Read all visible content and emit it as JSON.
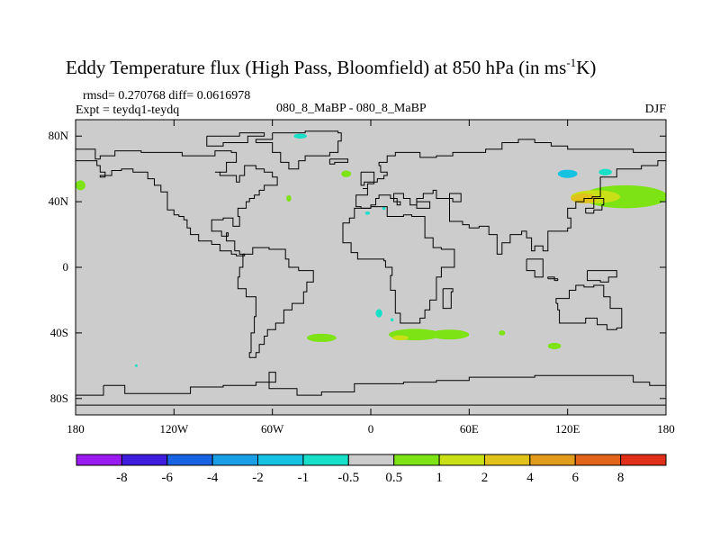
{
  "chart_data": {
    "type": "heatmap",
    "title": "Eddy Temperature flux (High Pass, Bloomfield) at 850 hPa (in ms",
    "title_sup": "-1",
    "title_tail": "K)",
    "stats": "rmsd= 0.270768 diff= 0.0616978",
    "experiment": "Expt = teydq1-teydq",
    "center_label": "080_8_MaBP - 080_8_MaBP",
    "season": "DJF",
    "x_range": [
      -180,
      180
    ],
    "y_range": [
      -90,
      90
    ],
    "x_ticks": [
      {
        "value": -180,
        "label": "180"
      },
      {
        "value": -120,
        "label": "120W"
      },
      {
        "value": -60,
        "label": "60W"
      },
      {
        "value": 0,
        "label": "0"
      },
      {
        "value": 60,
        "label": "60E"
      },
      {
        "value": 120,
        "label": "120E"
      },
      {
        "value": 180,
        "label": "180"
      }
    ],
    "y_ticks": [
      {
        "value": 80,
        "label": "80N"
      },
      {
        "value": 40,
        "label": "40N"
      },
      {
        "value": 0,
        "label": "0"
      },
      {
        "value": -40,
        "label": "40S"
      },
      {
        "value": -80,
        "label": "80S"
      }
    ],
    "colorbar": {
      "colors": [
        "#9a1cf0",
        "#3d1ddb",
        "#1863e3",
        "#1a9ee6",
        "#16c2e2",
        "#18dfc7",
        "#cccccc",
        "#7de314",
        "#c9e016",
        "#e0c21a",
        "#e09c1a",
        "#e0641a",
        "#e0301a"
      ],
      "labels": [
        "-8",
        "-6",
        "-4",
        "-2",
        "-1",
        "-0.5",
        "0.5",
        "1",
        "2",
        "4",
        "6",
        "8"
      ]
    },
    "background_color": "#cccccc",
    "coastline_color": "#000000",
    "anomalies": [
      {
        "lon": 155,
        "lat": 43,
        "rx": 26,
        "ry": 7,
        "color": "#7de314"
      },
      {
        "lon": 137,
        "lat": 43,
        "rx": 15,
        "ry": 4,
        "color": "#c9e016"
      },
      {
        "lon": 130,
        "lat": 42,
        "rx": 8,
        "ry": 3,
        "color": "#e0c21a"
      },
      {
        "lon": 120,
        "lat": 57,
        "rx": 6,
        "ry": 2.5,
        "color": "#16c2e2"
      },
      {
        "lon": 143,
        "lat": 58,
        "rx": 4,
        "ry": 2,
        "color": "#18dfc7"
      },
      {
        "lon": -177,
        "lat": 50,
        "rx": 3,
        "ry": 3,
        "color": "#7de314"
      },
      {
        "lon": -43,
        "lat": 80,
        "rx": 4,
        "ry": 1.5,
        "color": "#18dfc7"
      },
      {
        "lon": -15,
        "lat": 57,
        "rx": 3,
        "ry": 2,
        "color": "#7de314"
      },
      {
        "lon": -50,
        "lat": 42,
        "rx": 1.5,
        "ry": 2,
        "color": "#7de314"
      },
      {
        "lon": -2,
        "lat": 33,
        "rx": 1.5,
        "ry": 1,
        "color": "#18dfc7"
      },
      {
        "lon": 8,
        "lat": 36,
        "rx": 1,
        "ry": 1,
        "color": "#18dfc7"
      },
      {
        "lon": 5,
        "lat": -28,
        "rx": 2,
        "ry": 2.5,
        "color": "#18dfc7"
      },
      {
        "lon": 27,
        "lat": -41,
        "rx": 16,
        "ry": 3.5,
        "color": "#7de314"
      },
      {
        "lon": 48,
        "lat": -41,
        "rx": 12,
        "ry": 3,
        "color": "#7de314"
      },
      {
        "lon": 18,
        "lat": -43,
        "rx": 5,
        "ry": 1.5,
        "color": "#c9e016"
      },
      {
        "lon": -30,
        "lat": -43,
        "rx": 9,
        "ry": 2.5,
        "color": "#7de314"
      },
      {
        "lon": 112,
        "lat": -48,
        "rx": 4,
        "ry": 2,
        "color": "#7de314"
      },
      {
        "lon": 80,
        "lat": -40,
        "rx": 2,
        "ry": 1.5,
        "color": "#7de314"
      },
      {
        "lon": 13,
        "lat": -32,
        "rx": 1,
        "ry": 1,
        "color": "#18dfc7"
      },
      {
        "lon": -143,
        "lat": -60,
        "rx": 0.8,
        "ry": 0.8,
        "color": "#18dfc7"
      }
    ],
    "coastlines": [
      [
        [
          -180,
          72
        ],
        [
          -170,
          72
        ],
        [
          -168,
          66
        ],
        [
          -165,
          68
        ],
        [
          -156,
          71
        ],
        [
          -140,
          70
        ],
        [
          -128,
          70
        ],
        [
          -115,
          68
        ],
        [
          -100,
          68
        ],
        [
          -95,
          71
        ],
        [
          -85,
          70
        ],
        [
          -82,
          64
        ],
        [
          -88,
          58
        ],
        [
          -95,
          58
        ],
        [
          -92,
          56
        ],
        [
          -82,
          52
        ],
        [
          -80,
          56
        ],
        [
          -77,
          62
        ],
        [
          -70,
          60
        ],
        [
          -65,
          58
        ],
        [
          -60,
          55
        ],
        [
          -57,
          50
        ],
        [
          -65,
          47
        ],
        [
          -68,
          44
        ],
        [
          -71,
          42
        ],
        [
          -74,
          40
        ],
        [
          -76,
          36
        ],
        [
          -81,
          31
        ],
        [
          -80,
          25
        ],
        [
          -84,
          30
        ],
        [
          -90,
          29
        ],
        [
          -97,
          27
        ],
        [
          -97,
          22
        ],
        [
          -91,
          19
        ],
        [
          -87,
          21
        ],
        [
          -88,
          16
        ],
        [
          -83,
          15
        ],
        [
          -83,
          10
        ],
        [
          -80,
          8
        ],
        [
          -77,
          7
        ],
        [
          -82,
          8
        ],
        [
          -85,
          10
        ],
        [
          -92,
          14
        ],
        [
          -97,
          16
        ],
        [
          -105,
          20
        ],
        [
          -110,
          24
        ],
        [
          -112,
          29
        ],
        [
          -114,
          31
        ],
        [
          -117,
          32
        ],
        [
          -120,
          35
        ],
        [
          -124,
          40
        ],
        [
          -124,
          46
        ],
        [
          -128,
          50
        ],
        [
          -132,
          54
        ],
        [
          -136,
          58
        ],
        [
          -145,
          60
        ],
        [
          -152,
          59
        ],
        [
          -158,
          56
        ],
        [
          -165,
          55
        ],
        [
          -162,
          58
        ],
        [
          -165,
          62
        ],
        [
          -167,
          65
        ],
        [
          -180,
          66
        ]
      ],
      [
        [
          -60,
          82
        ],
        [
          -40,
          83
        ],
        [
          -20,
          82
        ],
        [
          -18,
          77
        ],
        [
          -20,
          70
        ],
        [
          -25,
          68
        ],
        [
          -40,
          65
        ],
        [
          -44,
          60
        ],
        [
          -50,
          64
        ],
        [
          -55,
          70
        ],
        [
          -60,
          76
        ],
        [
          -70,
          78
        ],
        [
          -60,
          82
        ]
      ],
      [
        [
          -100,
          80
        ],
        [
          -80,
          82
        ],
        [
          -65,
          80
        ],
        [
          -75,
          76
        ],
        [
          -90,
          74
        ],
        [
          -100,
          76
        ],
        [
          -100,
          80
        ]
      ],
      [
        [
          -25,
          66
        ],
        [
          -14,
          66
        ],
        [
          -14,
          64
        ],
        [
          -22,
          63
        ],
        [
          -25,
          66
        ]
      ],
      [
        [
          -6,
          58
        ],
        [
          -2,
          58
        ],
        [
          2,
          52
        ],
        [
          -4,
          50
        ],
        [
          -6,
          54
        ],
        [
          -6,
          58
        ]
      ],
      [
        [
          -9,
          43
        ],
        [
          -9,
          37
        ],
        [
          -6,
          36
        ],
        [
          0,
          38
        ],
        [
          3,
          42
        ],
        [
          5,
          44
        ],
        [
          8,
          44
        ],
        [
          12,
          42
        ],
        [
          16,
          38
        ],
        [
          18,
          40
        ],
        [
          14,
          45
        ],
        [
          20,
          42
        ],
        [
          24,
          38
        ],
        [
          28,
          40
        ],
        [
          36,
          40
        ],
        [
          36,
          36
        ],
        [
          32,
          36
        ],
        [
          28,
          42
        ],
        [
          32,
          45
        ],
        [
          38,
          47
        ],
        [
          40,
          42
        ],
        [
          50,
          40
        ],
        [
          55,
          45
        ],
        [
          48,
          28
        ],
        [
          56,
          26
        ],
        [
          60,
          24
        ],
        [
          66,
          25
        ],
        [
          72,
          20
        ],
        [
          77,
          8
        ],
        [
          80,
          15
        ],
        [
          85,
          20
        ],
        [
          92,
          22
        ],
        [
          95,
          18
        ],
        [
          98,
          10
        ],
        [
          100,
          13
        ],
        [
          105,
          10
        ],
        [
          108,
          16
        ],
        [
          108,
          22
        ],
        [
          120,
          24
        ],
        [
          122,
          30
        ],
        [
          120,
          36
        ],
        [
          125,
          40
        ],
        [
          130,
          42
        ],
        [
          135,
          43
        ],
        [
          140,
          48
        ],
        [
          140,
          55
        ],
        [
          150,
          60
        ],
        [
          160,
          60
        ],
        [
          165,
          62
        ],
        [
          175,
          65
        ],
        [
          180,
          67
        ],
        [
          180,
          70
        ],
        [
          170,
          70
        ],
        [
          160,
          72
        ],
        [
          140,
          72
        ],
        [
          120,
          74
        ],
        [
          110,
          76
        ],
        [
          100,
          78
        ],
        [
          90,
          76
        ],
        [
          80,
          72
        ],
        [
          70,
          70
        ],
        [
          60,
          70
        ],
        [
          50,
          68
        ],
        [
          40,
          67
        ],
        [
          30,
          70
        ],
        [
          20,
          70
        ],
        [
          15,
          68
        ],
        [
          10,
          64
        ],
        [
          5,
          62
        ],
        [
          6,
          58
        ],
        [
          10,
          56
        ],
        [
          8,
          54
        ],
        [
          4,
          52
        ],
        [
          2,
          51
        ],
        [
          -2,
          48
        ],
        [
          -5,
          48
        ],
        [
          -2,
          44
        ],
        [
          -9,
          43
        ]
      ],
      [
        [
          -17,
          21
        ],
        [
          -17,
          15
        ],
        [
          -12,
          9
        ],
        [
          -8,
          5
        ],
        [
          0,
          5
        ],
        [
          8,
          4
        ],
        [
          9,
          0
        ],
        [
          13,
          -5
        ],
        [
          12,
          -14
        ],
        [
          15,
          -28
        ],
        [
          18,
          -34
        ],
        [
          25,
          -34
        ],
        [
          30,
          -31
        ],
        [
          33,
          -26
        ],
        [
          36,
          -20
        ],
        [
          40,
          -15
        ],
        [
          40,
          -6
        ],
        [
          43,
          0
        ],
        [
          51,
          11
        ],
        [
          43,
          12
        ],
        [
          38,
          18
        ],
        [
          33,
          28
        ],
        [
          33,
          31
        ],
        [
          25,
          32
        ],
        [
          20,
          31
        ],
        [
          10,
          34
        ],
        [
          10,
          37
        ],
        [
          0,
          36
        ],
        [
          -5,
          36
        ],
        [
          -10,
          30
        ],
        [
          -13,
          27
        ],
        [
          -17,
          21
        ]
      ],
      [
        [
          44,
          -13
        ],
        [
          50,
          -15
        ],
        [
          49,
          -25
        ],
        [
          44,
          -25
        ],
        [
          44,
          -13
        ]
      ],
      [
        [
          -78,
          8
        ],
        [
          -72,
          12
        ],
        [
          -62,
          11
        ],
        [
          -52,
          5
        ],
        [
          -50,
          0
        ],
        [
          -44,
          -2
        ],
        [
          -35,
          -5
        ],
        [
          -35,
          -9
        ],
        [
          -39,
          -15
        ],
        [
          -41,
          -22
        ],
        [
          -48,
          -26
        ],
        [
          -53,
          -34
        ],
        [
          -58,
          -38
        ],
        [
          -63,
          -42
        ],
        [
          -65,
          -47
        ],
        [
          -68,
          -52
        ],
        [
          -70,
          -55
        ],
        [
          -74,
          -52
        ],
        [
          -73,
          -40
        ],
        [
          -71,
          -30
        ],
        [
          -70,
          -18
        ],
        [
          -76,
          -13
        ],
        [
          -81,
          -6
        ],
        [
          -80,
          0
        ],
        [
          -78,
          8
        ]
      ],
      [
        [
          113,
          -22
        ],
        [
          114,
          -26
        ],
        [
          115,
          -34
        ],
        [
          123,
          -34
        ],
        [
          131,
          -31
        ],
        [
          138,
          -35
        ],
        [
          144,
          -38
        ],
        [
          150,
          -37
        ],
        [
          153,
          -30
        ],
        [
          153,
          -25
        ],
        [
          146,
          -18
        ],
        [
          142,
          -11
        ],
        [
          136,
          -12
        ],
        [
          130,
          -11
        ],
        [
          125,
          -14
        ],
        [
          121,
          -19
        ],
        [
          113,
          -22
        ]
      ],
      [
        [
          95,
          5
        ],
        [
          105,
          -6
        ],
        [
          100,
          -2
        ],
        [
          95,
          5
        ]
      ],
      [
        [
          108,
          -7
        ],
        [
          114,
          -8
        ],
        [
          112,
          -6
        ],
        [
          108,
          -7
        ]
      ],
      [
        [
          132,
          -2
        ],
        [
          150,
          -6
        ],
        [
          145,
          -9
        ],
        [
          140,
          -8
        ],
        [
          132,
          -2
        ]
      ],
      [
        [
          131,
          33
        ],
        [
          136,
          35
        ],
        [
          141,
          38
        ],
        [
          142,
          42
        ],
        [
          140,
          42
        ],
        [
          136,
          36
        ],
        [
          131,
          33
        ]
      ],
      [
        [
          -163,
          -72
        ],
        [
          -150,
          -77
        ],
        [
          -110,
          -73
        ],
        [
          -90,
          -72
        ],
        [
          -70,
          -70
        ],
        [
          -58,
          -64
        ],
        [
          -62,
          -74
        ],
        [
          -45,
          -78
        ],
        [
          -30,
          -76
        ],
        [
          -10,
          -71
        ],
        [
          20,
          -70
        ],
        [
          40,
          -69
        ],
        [
          60,
          -67
        ],
        [
          80,
          -67
        ],
        [
          100,
          -66
        ],
        [
          120,
          -66
        ],
        [
          140,
          -66
        ],
        [
          160,
          -70
        ],
        [
          170,
          -72
        ],
        [
          180,
          -78
        ],
        [
          180,
          -84
        ],
        [
          -180,
          -84
        ],
        [
          -180,
          -78
        ],
        [
          -163,
          -72
        ]
      ],
      [
        [
          -180,
          66
        ],
        [
          -180,
          72
        ]
      ]
    ]
  }
}
